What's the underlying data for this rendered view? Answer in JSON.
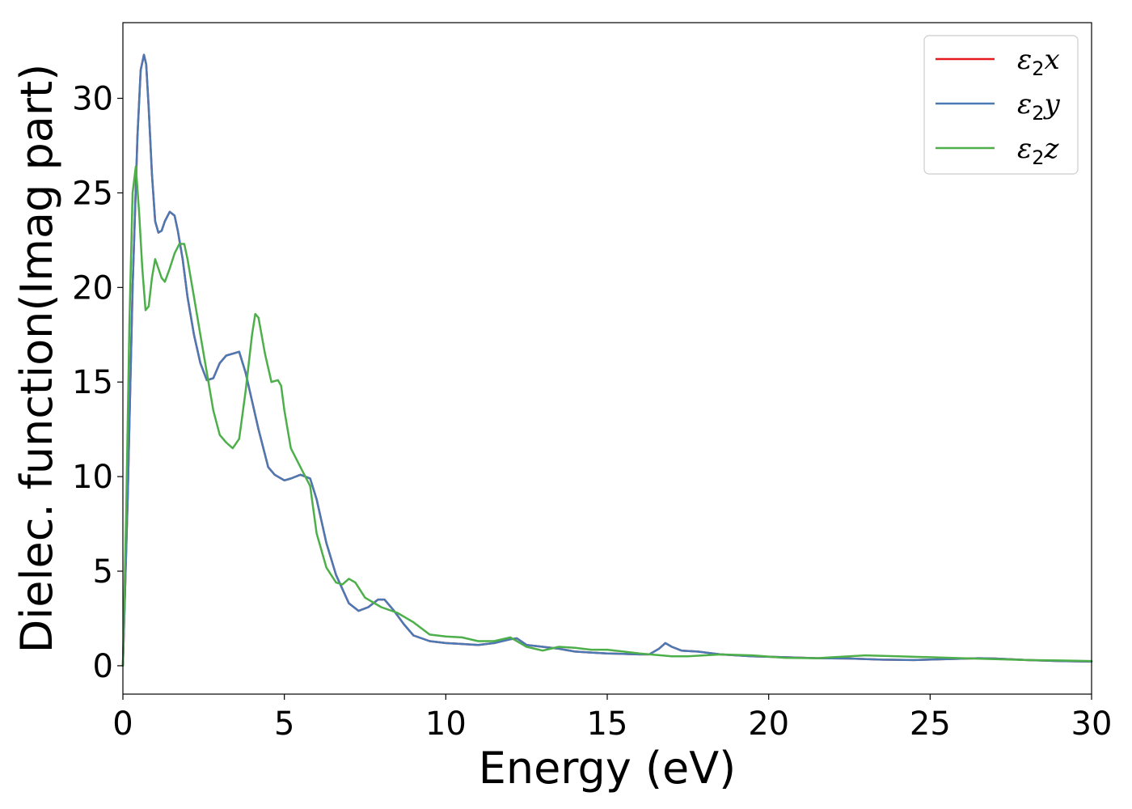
{
  "chart_data": {
    "type": "line",
    "xlabel": "Energy (eV)",
    "ylabel": "Dielec. function(Imag part)",
    "xlim": [
      0,
      30
    ],
    "ylim": [
      -1.5,
      34
    ],
    "xticks": [
      "0",
      "5",
      "10",
      "15",
      "20",
      "25",
      "30"
    ],
    "yticks": [
      "0",
      "5",
      "10",
      "15",
      "20",
      "25",
      "30"
    ],
    "grid": false,
    "legend_position": "top-right",
    "series": [
      {
        "name": "ε2x",
        "legend_symbol": "ε",
        "legend_subscript": "2",
        "legend_var": "x",
        "color": "#e41a1c",
        "x": [
          0,
          0.15,
          0.3,
          0.45,
          0.55,
          0.65,
          0.72,
          0.8,
          0.9,
          1.0,
          1.1,
          1.2,
          1.3,
          1.45,
          1.6,
          1.7,
          1.85,
          2.0,
          2.2,
          2.4,
          2.6,
          2.8,
          3.0,
          3.2,
          3.4,
          3.6,
          3.8,
          4.0,
          4.2,
          4.5,
          4.7,
          5.0,
          5.2,
          5.5,
          5.8,
          6.0,
          6.3,
          6.6,
          7.0,
          7.3,
          7.6,
          7.9,
          8.1,
          8.4,
          8.7,
          9.0,
          9.5,
          10.0,
          10.5,
          11.0,
          11.5,
          12.0,
          12.2,
          12.5,
          13.0,
          13.5,
          14.0,
          14.5,
          15.0,
          16.0,
          16.3,
          16.6,
          16.8,
          17.0,
          17.3,
          17.8,
          18.5,
          19.5,
          20.5,
          21.5,
          22.5,
          23.5,
          24.5,
          25.5,
          26.5,
          27.0,
          28.0,
          29.0,
          30.0
        ],
        "values": [
          0,
          9,
          20,
          28,
          31.5,
          32.3,
          31.8,
          29.5,
          26,
          23.5,
          22.9,
          23,
          23.5,
          24,
          23.8,
          23,
          21.5,
          19.5,
          17.5,
          16,
          15.1,
          15.2,
          16,
          16.4,
          16.5,
          16.6,
          15.5,
          14,
          12.5,
          10.5,
          10.1,
          9.8,
          9.9,
          10.1,
          9.9,
          8.8,
          6.5,
          4.8,
          3.3,
          2.9,
          3.1,
          3.5,
          3.5,
          2.9,
          2.2,
          1.6,
          1.3,
          1.2,
          1.15,
          1.1,
          1.2,
          1.4,
          1.45,
          1.1,
          1.0,
          0.9,
          0.75,
          0.7,
          0.65,
          0.6,
          0.6,
          0.9,
          1.2,
          1.0,
          0.8,
          0.75,
          0.6,
          0.5,
          0.45,
          0.4,
          0.38,
          0.32,
          0.3,
          0.35,
          0.4,
          0.38,
          0.3,
          0.25,
          0.22
        ]
      },
      {
        "name": "ε2y",
        "legend_symbol": "ε",
        "legend_subscript": "2",
        "legend_var": "y",
        "color": "#4a79b4",
        "x": [
          0,
          0.15,
          0.3,
          0.45,
          0.55,
          0.65,
          0.72,
          0.8,
          0.9,
          1.0,
          1.1,
          1.2,
          1.3,
          1.45,
          1.6,
          1.7,
          1.85,
          2.0,
          2.2,
          2.4,
          2.6,
          2.8,
          3.0,
          3.2,
          3.4,
          3.6,
          3.8,
          4.0,
          4.2,
          4.5,
          4.7,
          5.0,
          5.2,
          5.5,
          5.8,
          6.0,
          6.3,
          6.6,
          7.0,
          7.3,
          7.6,
          7.9,
          8.1,
          8.4,
          8.7,
          9.0,
          9.5,
          10.0,
          10.5,
          11.0,
          11.5,
          12.0,
          12.2,
          12.5,
          13.0,
          13.5,
          14.0,
          14.5,
          15.0,
          16.0,
          16.3,
          16.6,
          16.8,
          17.0,
          17.3,
          17.8,
          18.5,
          19.5,
          20.5,
          21.5,
          22.5,
          23.5,
          24.5,
          25.5,
          26.5,
          27.0,
          28.0,
          29.0,
          30.0
        ],
        "values": [
          0,
          9,
          20,
          28,
          31.5,
          32.3,
          31.8,
          29.5,
          26,
          23.5,
          22.9,
          23,
          23.5,
          24,
          23.8,
          23,
          21.5,
          19.5,
          17.5,
          16,
          15.1,
          15.2,
          16,
          16.4,
          16.5,
          16.6,
          15.5,
          14,
          12.5,
          10.5,
          10.1,
          9.8,
          9.9,
          10.1,
          9.9,
          8.8,
          6.5,
          4.8,
          3.3,
          2.9,
          3.1,
          3.5,
          3.5,
          2.9,
          2.2,
          1.6,
          1.3,
          1.2,
          1.15,
          1.1,
          1.2,
          1.4,
          1.45,
          1.1,
          1.0,
          0.9,
          0.75,
          0.7,
          0.65,
          0.6,
          0.6,
          0.9,
          1.2,
          1.0,
          0.8,
          0.75,
          0.6,
          0.5,
          0.45,
          0.4,
          0.38,
          0.32,
          0.3,
          0.35,
          0.4,
          0.38,
          0.3,
          0.25,
          0.22
        ]
      },
      {
        "name": "ε2z",
        "legend_symbol": "ε",
        "legend_subscript": "2",
        "legend_var": "z",
        "color": "#4daf4a",
        "x": [
          0,
          0.1,
          0.2,
          0.3,
          0.4,
          0.5,
          0.6,
          0.7,
          0.8,
          0.9,
          1.0,
          1.1,
          1.2,
          1.3,
          1.45,
          1.6,
          1.75,
          1.9,
          2.0,
          2.2,
          2.4,
          2.6,
          2.8,
          3.0,
          3.2,
          3.4,
          3.6,
          3.8,
          4.0,
          4.1,
          4.2,
          4.4,
          4.6,
          4.8,
          4.9,
          5.0,
          5.2,
          5.5,
          5.8,
          6.0,
          6.3,
          6.6,
          6.8,
          7.0,
          7.2,
          7.5,
          8.0,
          8.5,
          9.0,
          9.5,
          10.0,
          10.5,
          11.0,
          11.5,
          12.0,
          12.5,
          13.0,
          13.5,
          14.0,
          14.5,
          15.0,
          15.5,
          16.0,
          17.0,
          17.5,
          18.5,
          19.5,
          20.5,
          21.5,
          22.0,
          22.5,
          23.0,
          24.0,
          25.0,
          26.0,
          27.0,
          28.0,
          29.0,
          30.0
        ],
        "values": [
          0,
          8,
          18,
          25,
          26.4,
          24,
          21,
          18.8,
          19,
          20.5,
          21.5,
          21,
          20.5,
          20.3,
          21,
          21.8,
          22.3,
          22.3,
          21.5,
          19.5,
          17.5,
          15.5,
          13.5,
          12.2,
          11.8,
          11.5,
          12,
          14.5,
          17.5,
          18.6,
          18.4,
          16.5,
          15,
          15.1,
          14.8,
          13.5,
          11.5,
          10.5,
          9.5,
          7,
          5.2,
          4.4,
          4.3,
          4.6,
          4.4,
          3.6,
          3.1,
          2.8,
          2.3,
          1.65,
          1.55,
          1.5,
          1.3,
          1.3,
          1.5,
          1.0,
          0.8,
          1.0,
          0.95,
          0.85,
          0.85,
          0.75,
          0.65,
          0.5,
          0.5,
          0.6,
          0.55,
          0.42,
          0.4,
          0.45,
          0.5,
          0.55,
          0.5,
          0.45,
          0.4,
          0.35,
          0.3,
          0.28,
          0.25
        ]
      }
    ]
  }
}
